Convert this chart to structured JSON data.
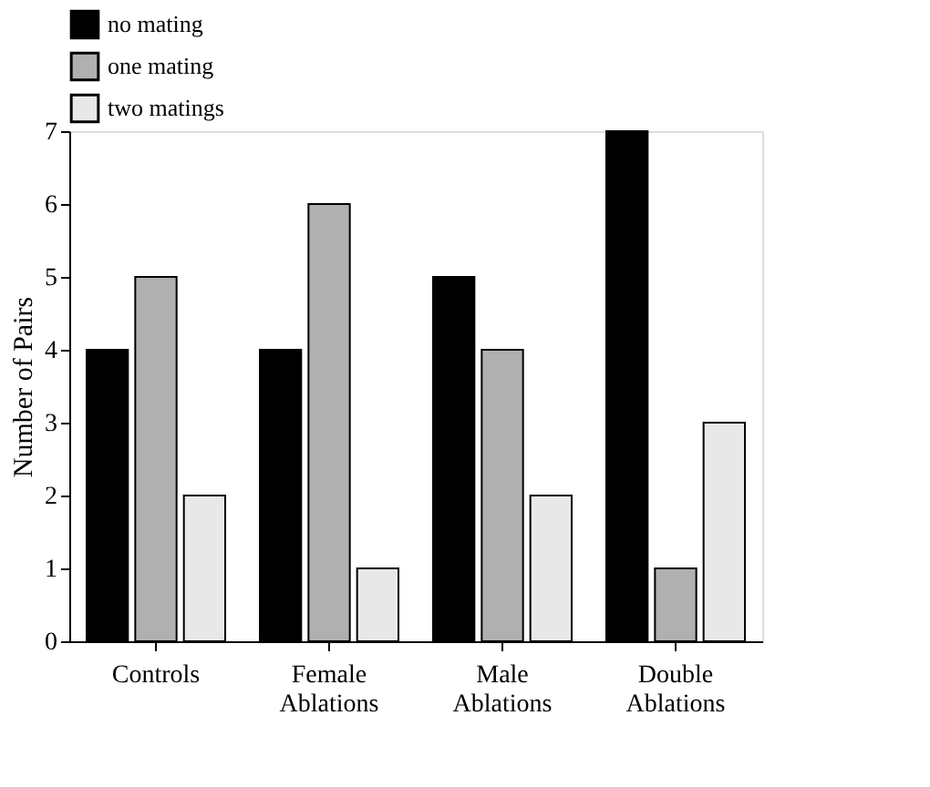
{
  "chart_data": {
    "type": "bar",
    "ylabel": "Number of Pairs",
    "categories": [
      "Controls",
      "Female Ablations",
      "Male Ablations",
      "Double Ablations"
    ],
    "series": [
      {
        "name": "no mating",
        "color": "#000000",
        "values": [
          4,
          4,
          5,
          7
        ]
      },
      {
        "name": "one mating",
        "color": "#b0b0b0",
        "values": [
          5,
          6,
          4,
          1
        ]
      },
      {
        "name": "two matings",
        "color": "#e8e8e8",
        "values": [
          2,
          1,
          2,
          3
        ]
      }
    ],
    "ylim": [
      0,
      7
    ],
    "yticks": [
      0,
      1,
      2,
      3,
      4,
      5,
      6,
      7
    ],
    "grid": false,
    "legend": "top"
  }
}
